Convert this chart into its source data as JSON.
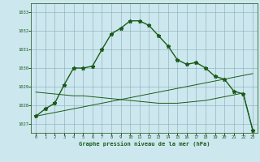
{
  "title": "Graphe pression niveau de la mer (hPa)",
  "background_color": "#cce8ee",
  "line_color": "#1a5c1a",
  "xlim": [
    -0.5,
    23.5
  ],
  "ylim": [
    1026.5,
    1033.5
  ],
  "yticks": [
    1027,
    1028,
    1029,
    1030,
    1031,
    1032,
    1033
  ],
  "xticks": [
    0,
    1,
    2,
    3,
    4,
    5,
    6,
    7,
    8,
    9,
    10,
    11,
    12,
    13,
    14,
    15,
    16,
    17,
    18,
    19,
    20,
    21,
    22,
    23
  ],
  "series1_x": [
    0,
    1,
    2,
    3,
    4,
    5,
    6,
    7,
    8,
    9,
    10,
    11,
    12,
    13,
    14,
    15,
    16,
    17,
    18,
    19,
    20,
    21,
    22,
    23
  ],
  "series1_y": [
    1027.4,
    1027.8,
    1028.1,
    1029.1,
    1030.0,
    1030.0,
    1030.1,
    1031.0,
    1031.85,
    1032.15,
    1032.55,
    1032.55,
    1032.3,
    1031.75,
    1031.2,
    1030.45,
    1030.2,
    1030.3,
    1030.0,
    1029.55,
    1029.4,
    1028.75,
    1028.6,
    1026.65
  ],
  "series2_x": [
    0,
    1,
    2,
    3,
    4,
    5,
    6,
    7,
    8,
    9,
    10,
    11,
    12,
    13,
    14,
    15,
    16,
    17,
    18,
    19,
    20,
    21,
    22,
    23
  ],
  "series2_y": [
    1028.7,
    1028.65,
    1028.6,
    1028.55,
    1028.5,
    1028.5,
    1028.45,
    1028.4,
    1028.35,
    1028.3,
    1028.25,
    1028.2,
    1028.15,
    1028.1,
    1028.1,
    1028.1,
    1028.15,
    1028.2,
    1028.25,
    1028.35,
    1028.45,
    1028.55,
    1028.65,
    1026.65
  ],
  "series3_x": [
    0,
    1,
    2,
    3,
    4,
    5,
    6,
    7,
    8,
    9,
    10,
    11,
    12,
    13,
    14,
    15,
    16,
    17,
    18,
    19,
    20,
    21,
    22,
    23
  ],
  "series3_y": [
    1027.4,
    1027.5,
    1027.6,
    1027.7,
    1027.8,
    1027.9,
    1028.0,
    1028.1,
    1028.2,
    1028.3,
    1028.4,
    1028.5,
    1028.6,
    1028.7,
    1028.8,
    1028.9,
    1029.0,
    1029.1,
    1029.2,
    1029.3,
    1029.4,
    1029.5,
    1029.6,
    1029.7
  ]
}
